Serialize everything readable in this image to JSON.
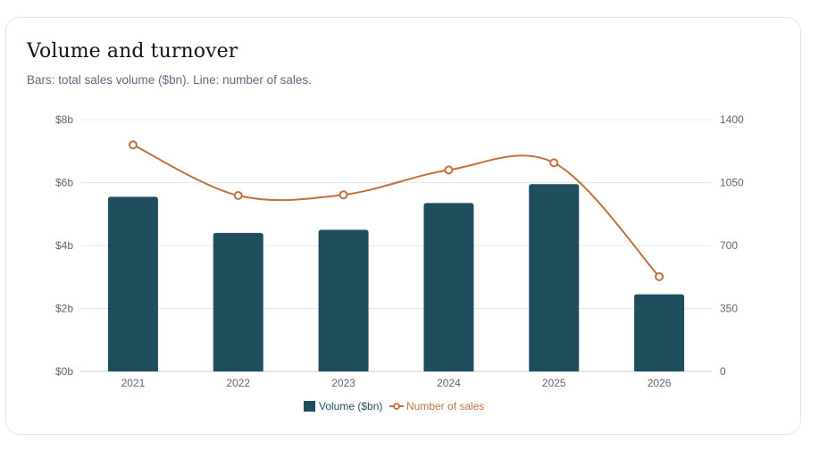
{
  "chart_data": {
    "type": "bar",
    "title": "Volume and turnover",
    "subtitle": "Bars: total sales volume ($bn). Line: number of sales.",
    "categories": [
      "2021",
      "2022",
      "2023",
      "2024",
      "2025",
      "2026"
    ],
    "series": [
      {
        "name": "Volume ($bn)",
        "type": "bar",
        "axis": "left",
        "color": "#1f4e5f",
        "values": [
          5.55,
          4.4,
          4.5,
          5.35,
          5.95,
          2.45
        ]
      },
      {
        "name": "Number of sales",
        "type": "line",
        "axis": "right",
        "color": "#c0713f",
        "values": [
          1260,
          978,
          982,
          1120,
          1160,
          527
        ]
      }
    ],
    "y_left": {
      "min": 0,
      "max": 8,
      "ticks": [
        0,
        2,
        4,
        6,
        8
      ],
      "tick_labels": [
        "$0b",
        "$2b",
        "$4b",
        "$6b",
        "$8b"
      ]
    },
    "y_right": {
      "min": 0,
      "max": 1400,
      "ticks": [
        0,
        350,
        700,
        1050,
        1400
      ],
      "tick_labels": [
        "0",
        "350",
        "700",
        "1050",
        "1400"
      ]
    },
    "grid": true,
    "legend_position": "bottom-center"
  }
}
